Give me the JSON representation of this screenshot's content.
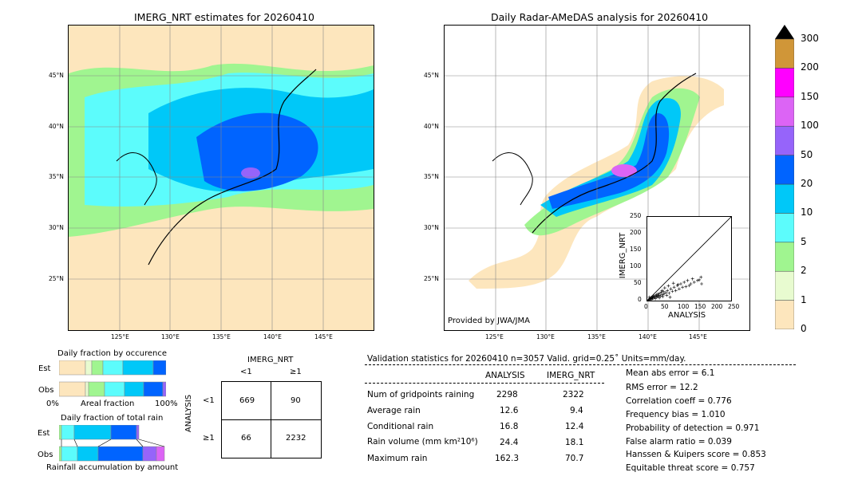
{
  "left_map": {
    "title": "IMERG_NRT estimates for 20260410",
    "lat_labels": [
      "45°N",
      "40°N",
      "35°N",
      "30°N",
      "25°N"
    ],
    "lon_labels": [
      "125°E",
      "130°E",
      "135°E",
      "140°E",
      "145°E"
    ]
  },
  "right_map": {
    "title": "Daily Radar-AMeDAS analysis for 20260410",
    "lat_labels": [
      "45°N",
      "40°N",
      "35°N",
      "30°N",
      "25°N"
    ],
    "lon_labels": [
      "125°E",
      "130°E",
      "135°E",
      "140°E",
      "145°E"
    ],
    "credit": "Provided by JWA/JMA"
  },
  "colorbar": {
    "levels": [
      "0",
      "1",
      "2",
      "5",
      "10",
      "20",
      "50",
      "100",
      "150",
      "200",
      "300"
    ],
    "colors": [
      "#fde6bd",
      "#e8fbd0",
      "#a0f590",
      "#5cfcfc",
      "#00c8f8",
      "#0064ff",
      "#9664fa",
      "#dc64f5",
      "#ff00ff",
      "#d09638"
    ],
    "extend_color": "#000000"
  },
  "fraction_occurrence": {
    "title": "Daily fraction by occurence",
    "rows": [
      "Est",
      "Obs"
    ],
    "x_left": "0%",
    "x_mid": "Areal fraction",
    "x_right": "100%"
  },
  "fraction_total": {
    "title": "Daily fraction of total rain",
    "rows": [
      "Est",
      "Obs"
    ],
    "footer": "Rainfall accumulation by amount"
  },
  "contingency": {
    "col_title": "IMERG_NRT",
    "col_lt": "<1",
    "col_ge": "≥1",
    "row_title": "ANALYSIS",
    "row_lt": "<1",
    "row_ge": "≥1",
    "cells": [
      "669",
      "90",
      "66",
      "2232"
    ]
  },
  "scatter": {
    "ylabel": "IMERG_NRT",
    "xlabel": "ANALYSIS",
    "ticks": [
      "0",
      "50",
      "100",
      "150",
      "200",
      "250"
    ]
  },
  "validation": {
    "header": "Validation statistics for 20260410  n=3057 Valid. grid=0.25˚ Units=mm/day.",
    "col_analysis": "ANALYSIS",
    "col_imerg": "IMERG_NRT",
    "rows": [
      {
        "label": "Num of gridpoints raining",
        "analysis": "2298",
        "imerg": "2322"
      },
      {
        "label": "Average rain",
        "analysis": "12.6",
        "imerg": "9.4"
      },
      {
        "label": "Conditional rain",
        "analysis": "16.8",
        "imerg": "12.4"
      },
      {
        "label": "Rain volume (mm km²10⁶)",
        "analysis": "24.4",
        "imerg": "18.1"
      },
      {
        "label": "Maximum rain",
        "analysis": "162.3",
        "imerg": "70.7"
      }
    ],
    "scores": [
      "Mean abs error =    6.1",
      "RMS error =   12.2",
      "Correlation coeff =  0.776",
      "Frequency bias =  1.010",
      "Probability of detection =  0.971",
      "False alarm ratio =  0.039",
      "Hanssen & Kuipers score =  0.853",
      "Equitable threat score =  0.757"
    ]
  },
  "chart_data": {
    "type": "scatter",
    "xlabel": "ANALYSIS",
    "ylabel": "IMERG_NRT",
    "xlim": [
      0,
      250
    ],
    "ylim": [
      0,
      250
    ],
    "points": [
      [
        5,
        3
      ],
      [
        8,
        6
      ],
      [
        10,
        8
      ],
      [
        12,
        9
      ],
      [
        15,
        10
      ],
      [
        18,
        12
      ],
      [
        20,
        14
      ],
      [
        22,
        10
      ],
      [
        25,
        15
      ],
      [
        28,
        18
      ],
      [
        30,
        12
      ],
      [
        32,
        20
      ],
      [
        35,
        16
      ],
      [
        38,
        22
      ],
      [
        40,
        14
      ],
      [
        42,
        25
      ],
      [
        45,
        18
      ],
      [
        48,
        28
      ],
      [
        50,
        20
      ],
      [
        55,
        24
      ],
      [
        60,
        30
      ],
      [
        65,
        22
      ],
      [
        70,
        35
      ],
      [
        75,
        28
      ],
      [
        80,
        40
      ],
      [
        85,
        30
      ],
      [
        90,
        45
      ],
      [
        95,
        35
      ],
      [
        100,
        50
      ],
      [
        105,
        40
      ],
      [
        110,
        55
      ],
      [
        115,
        42
      ],
      [
        120,
        60
      ],
      [
        125,
        45
      ],
      [
        130,
        50
      ],
      [
        135,
        65
      ],
      [
        140,
        55
      ],
      [
        150,
        60
      ],
      [
        155,
        62
      ],
      [
        160,
        70
      ],
      [
        162,
        50
      ],
      [
        6,
        10
      ],
      [
        14,
        4
      ],
      [
        24,
        6
      ],
      [
        36,
        8
      ],
      [
        46,
        12
      ],
      [
        58,
        16
      ],
      [
        68,
        10
      ],
      [
        3,
        1
      ],
      [
        7,
        2
      ],
      [
        11,
        5
      ],
      [
        16,
        7
      ],
      [
        19,
        9
      ],
      [
        27,
        11
      ],
      [
        33,
        13
      ],
      [
        44,
        30
      ],
      [
        52,
        38
      ],
      [
        63,
        44
      ],
      [
        78,
        52
      ],
      [
        92,
        48
      ]
    ]
  }
}
